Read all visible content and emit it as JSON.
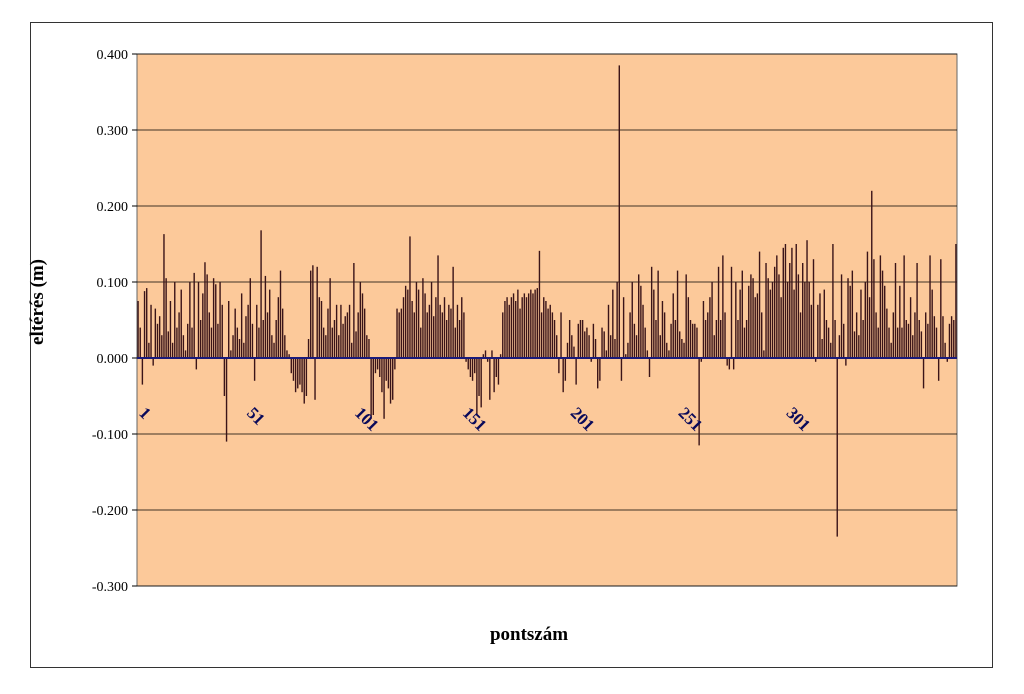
{
  "chart_data": {
    "type": "bar",
    "title": "",
    "xlabel": "pontszám",
    "ylabel": "eltérés (m)",
    "ylim": [
      -0.3,
      0.4
    ],
    "yticks": [
      -0.3,
      -0.2,
      -0.1,
      0.0,
      0.1,
      0.2,
      0.3,
      0.4
    ],
    "ytick_labels": [
      "-0.300",
      "-0.200",
      "-0.100",
      "0.000",
      "0.100",
      "0.200",
      "0.300",
      "0.400"
    ],
    "xtick_labels": [
      "1",
      "51",
      "101",
      "151",
      "201",
      "251",
      "301"
    ],
    "xtick_positions": [
      1,
      51,
      101,
      151,
      201,
      251,
      301
    ],
    "x_range": [
      1,
      342
    ],
    "grid": true,
    "legend": "none",
    "colors": {
      "plot_background": "#FCC99A",
      "bar": "#3a1418",
      "zero_line": "#1a1a7a",
      "gridline": "#000000",
      "tick_label": "#0a0a5a"
    },
    "series": [
      {
        "values": [
          0.075,
          0.04,
          -0.035,
          0.088,
          0.092,
          0.02,
          0.07,
          -0.01,
          0.065,
          0.045,
          0.055,
          0.03,
          0.163,
          0.105,
          0.035,
          0.075,
          0.02,
          0.1,
          0.04,
          0.06,
          0.09,
          0.03,
          0.01,
          0.045,
          0.1,
          0.04,
          0.112,
          -0.015,
          0.1,
          0.05,
          0.085,
          0.126,
          0.11,
          0.06,
          0.04,
          0.105,
          0.097,
          0.045,
          0.1,
          0.07,
          -0.05,
          -0.11,
          0.075,
          0.01,
          0.03,
          0.065,
          0.04,
          0.025,
          0.085,
          0.02,
          0.055,
          0.07,
          0.105,
          0.045,
          -0.03,
          0.07,
          0.04,
          0.168,
          0.05,
          0.108,
          0.06,
          0.09,
          0.03,
          0.02,
          0.05,
          0.08,
          0.115,
          0.065,
          0.03,
          0.01,
          0.005,
          -0.02,
          -0.03,
          -0.045,
          -0.04,
          -0.035,
          -0.045,
          -0.06,
          -0.05,
          0.025,
          0.115,
          0.122,
          -0.055,
          0.12,
          0.08,
          0.075,
          0.04,
          0.03,
          0.065,
          0.105,
          0.04,
          0.05,
          0.07,
          0.03,
          0.07,
          0.045,
          0.055,
          0.06,
          0.07,
          0.02,
          0.125,
          0.035,
          0.06,
          0.1,
          0.085,
          0.065,
          0.03,
          0.025,
          -0.08,
          -0.075,
          -0.02,
          -0.015,
          -0.025,
          -0.045,
          -0.08,
          -0.03,
          -0.04,
          -0.06,
          -0.055,
          -0.015,
          0.065,
          0.06,
          0.065,
          0.08,
          0.095,
          0.09,
          0.16,
          0.075,
          0.06,
          0.1,
          0.09,
          0.04,
          0.105,
          0.085,
          0.06,
          0.07,
          0.1,
          0.055,
          0.08,
          0.135,
          0.07,
          0.06,
          0.08,
          0.05,
          0.07,
          0.065,
          0.12,
          0.04,
          0.07,
          0.05,
          0.08,
          0.06,
          -0.005,
          -0.015,
          -0.025,
          -0.03,
          -0.02,
          -0.075,
          -0.05,
          -0.065,
          0.005,
          0.01,
          -0.005,
          -0.055,
          0.01,
          -0.045,
          -0.025,
          -0.035,
          0.005,
          0.06,
          0.075,
          0.08,
          0.07,
          0.08,
          0.085,
          0.075,
          0.09,
          0.065,
          0.08,
          0.085,
          0.08,
          0.085,
          0.09,
          0.085,
          0.09,
          0.092,
          0.141,
          0.06,
          0.08,
          0.075,
          0.065,
          0.07,
          0.06,
          0.05,
          0.03,
          -0.02,
          0.06,
          -0.045,
          -0.03,
          0.02,
          0.05,
          0.03,
          0.015,
          -0.035,
          0.045,
          0.05,
          0.05,
          0.035,
          0.04,
          0.03,
          -0.005,
          0.045,
          0.025,
          -0.04,
          -0.03,
          0.04,
          0.035,
          0.01,
          0.07,
          0.03,
          0.09,
          0.025,
          0.1,
          0.385,
          -0.03,
          0.08,
          0.005,
          0.02,
          0.06,
          0.1,
          0.045,
          0.03,
          0.11,
          0.095,
          0.07,
          0.04,
          0.01,
          -0.025,
          0.12,
          0.09,
          0.05,
          0.115,
          0.03,
          0.075,
          0.06,
          0.02,
          0.01,
          0.045,
          0.085,
          0.05,
          0.115,
          0.035,
          0.025,
          0.02,
          0.11,
          0.08,
          0.05,
          0.045,
          0.045,
          0.04,
          -0.115,
          -0.005,
          0.075,
          0.05,
          0.06,
          0.08,
          0.1,
          0.03,
          0.05,
          0.12,
          0.05,
          0.135,
          0.06,
          -0.01,
          -0.015,
          0.12,
          -0.015,
          0.1,
          0.05,
          0.09,
          0.115,
          0.04,
          0.05,
          0.095,
          0.11,
          0.105,
          0.08,
          0.085,
          0.14,
          0.06,
          0.01,
          0.125,
          0.105,
          0.09,
          0.1,
          0.12,
          0.135,
          0.11,
          0.08,
          0.145,
          0.15,
          0.1,
          0.125,
          0.145,
          0.09,
          0.15,
          0.11,
          0.06,
          0.125,
          0.1,
          0.155,
          0.1,
          0.07,
          0.13,
          -0.005,
          0.07,
          0.085,
          0.025,
          0.09,
          0.05,
          0.04,
          0.02,
          0.15,
          0.05,
          -0.235,
          0.03,
          0.11,
          0.045,
          -0.01,
          0.105,
          0.095,
          0.115,
          0.035,
          0.06,
          0.03,
          0.09,
          0.05,
          0.1,
          0.14,
          0.08,
          0.22,
          0.13,
          0.06,
          0.04,
          0.135,
          0.115,
          0.095,
          0.065,
          0.04,
          0.02,
          0.06,
          0.125,
          0.04,
          0.095,
          0.04,
          0.135,
          0.05,
          0.045,
          0.08,
          0.03,
          0.06,
          0.125,
          0.05,
          0.035,
          -0.04,
          0.06,
          0.045,
          0.135,
          0.09,
          0.055,
          0.04,
          -0.03,
          0.13,
          0.055,
          0.02,
          -0.005,
          0.045,
          0.055,
          0.05,
          0.15
        ]
      }
    ]
  }
}
